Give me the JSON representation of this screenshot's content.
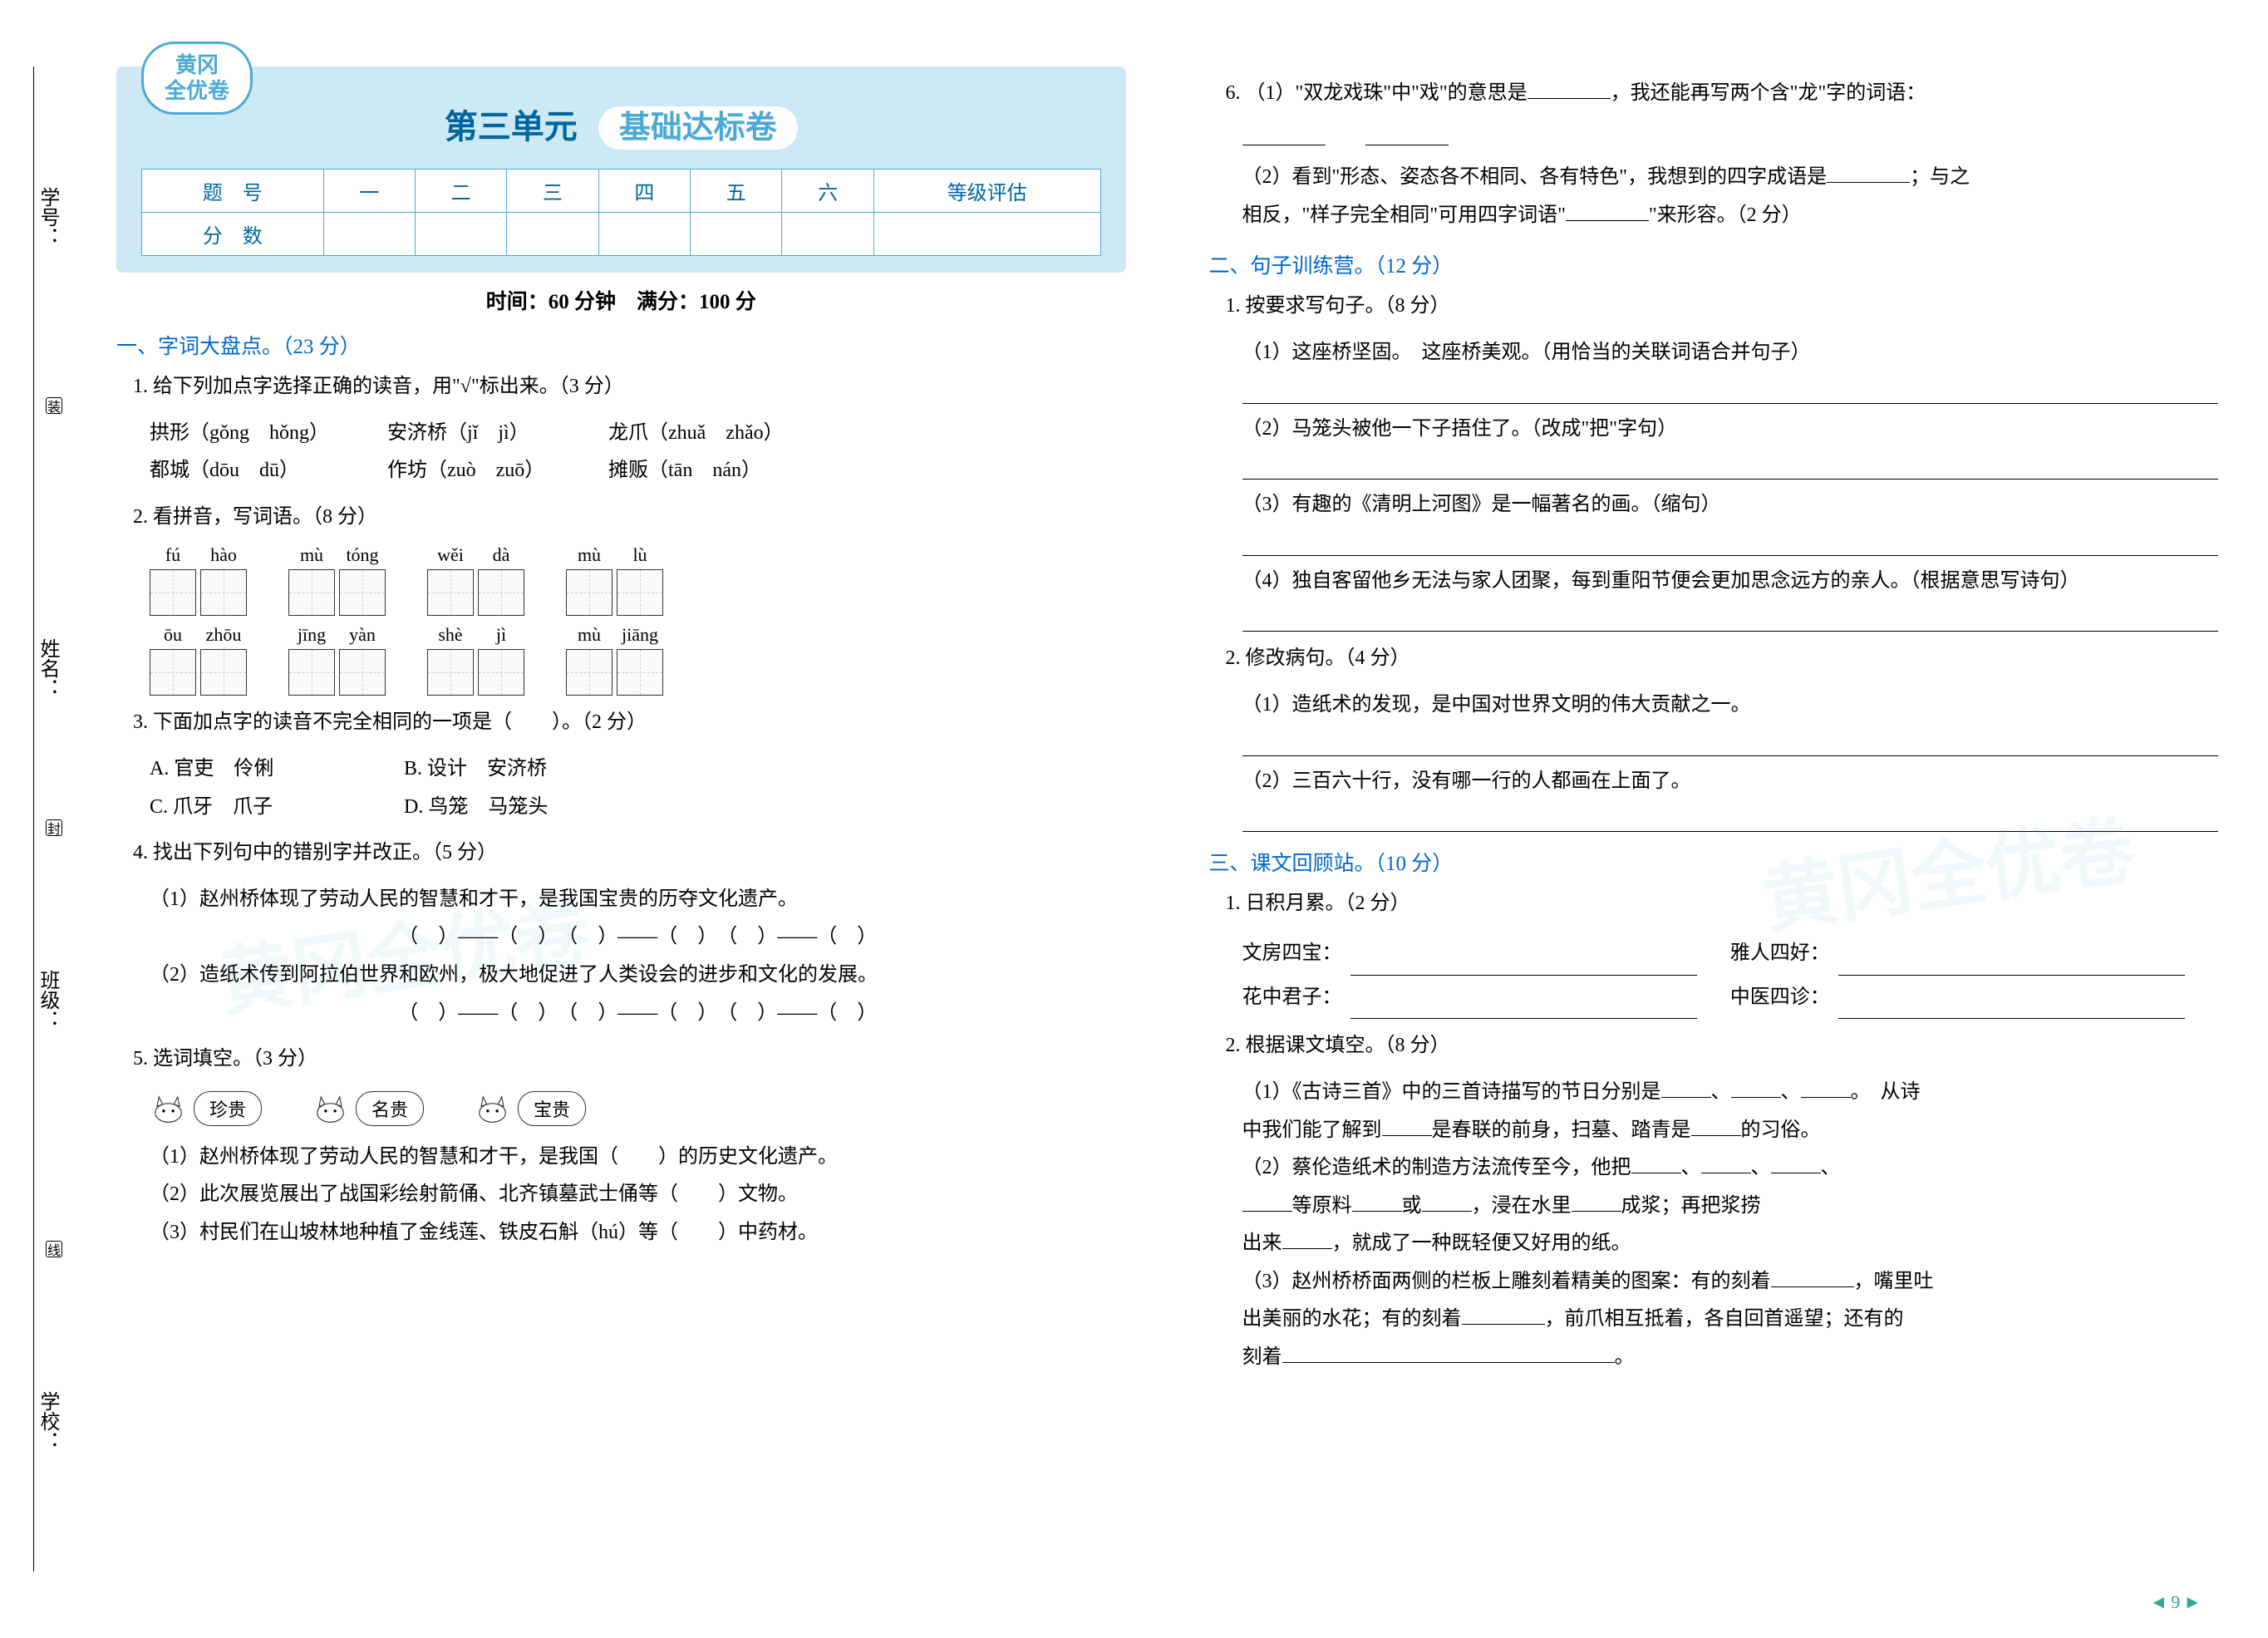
{
  "margin_labels": {
    "school": "学校：",
    "class": "班级：",
    "name": "姓名：",
    "number": "学号："
  },
  "cut_marks": [
    "装",
    "封",
    "线"
  ],
  "badge": {
    "line1": "黄冈",
    "line2": "全优卷"
  },
  "header": {
    "unit": "第三单元",
    "subtitle": "基础达标卷"
  },
  "score_headers": [
    "题　号",
    "一",
    "二",
    "三",
    "四",
    "五",
    "六",
    "等级评估"
  ],
  "score_row_label": "分　数",
  "time_info": "时间：60 分钟　满分：100 分",
  "sec1": {
    "title": "一、字词大盘点。（23 分）",
    "q1": {
      "stem": "1. 给下列加点字选择正确的读音，用\"√\"标出来。（3 分）",
      "rows": [
        [
          "拱形（gǒng　hǒng）",
          "安济桥（jǐ　jì）",
          "龙爪（zhuǎ　zhǎo）"
        ],
        [
          "都城（dōu　dū）",
          "作坊（zuò　zuō）",
          "摊贩（tān　nán）"
        ]
      ]
    },
    "q2": {
      "stem": "2. 看拼音，写词语。（8 分）",
      "row1": [
        [
          "fú",
          "hào"
        ],
        [
          "mù",
          "tóng"
        ],
        [
          "wěi",
          "dà"
        ],
        [
          "mù",
          "lù"
        ]
      ],
      "row2": [
        [
          "ōu",
          "zhōu"
        ],
        [
          "jīng",
          "yàn"
        ],
        [
          "shè",
          "jì"
        ],
        [
          "mù",
          "jiāng"
        ]
      ]
    },
    "q3": {
      "stem": "3. 下面加点字的读音不完全相同的一项是（　　）。（2 分）",
      "opts": [
        "A. 官吏　伶俐",
        "B. 设计　安济桥",
        "C. 爪牙　爪子",
        "D. 鸟笼　马笼头"
      ]
    },
    "q4": {
      "stem": "4. 找出下列句中的错别字并改正。（5 分）",
      "s1": "（1）赵州桥体现了劳动人民的智慧和才干，是我国宝贵的历夺文化遗产。",
      "s2": "（2）造纸术传到阿拉伯世界和欧州，极大地促进了人类设会的进步和文化的发展。",
      "corr": "（　）——（　）　（　）——（　）　（　）——（　）"
    },
    "q5": {
      "stem": "5. 选词填空。（3 分）",
      "words": [
        "珍贵",
        "名贵",
        "宝贵"
      ],
      "s1": "（1）赵州桥体现了劳动人民的智慧和才干，是我国（　　）的历史文化遗产。",
      "s2": "（2）此次展览展出了战国彩绘射箭俑、北齐镇墓武士俑等（　　）文物。",
      "s3": "（3）村民们在山坡林地种植了金线莲、铁皮石斛（hú）等（　　）中药材。"
    },
    "q6": {
      "s1a": "6. （1）\"双龙戏珠\"中\"戏\"的意思是",
      "s1b": "，我还能再写两个含\"龙\"字的词语：",
      "s2a": "（2）看到\"形态、姿态各不相同、各有特色\"，我想到的四字成语是",
      "s2b": "；与之",
      "s2c": "相反，\"样子完全相同\"可用四字词语\"",
      "s2d": "\"来形容。（2 分）"
    }
  },
  "sec2": {
    "title": "二、句子训练营。（12 分）",
    "q1": {
      "stem": "1. 按要求写句子。（8 分）",
      "s1": "（1）这座桥坚固。　这座桥美观。（用恰当的关联词语合并句子）",
      "s2": "（2）马笼头被他一下子捂住了。（改成\"把\"字句）",
      "s3": "（3）有趣的《清明上河图》是一幅著名的画。（缩句）",
      "s4": "（4）独自客留他乡无法与家人团聚，每到重阳节便会更加思念远方的亲人。（根据意思写诗句）"
    },
    "q2": {
      "stem": "2. 修改病句。（4 分）",
      "s1": "（1）造纸术的发现，是中国对世界文明的伟大贡献之一。",
      "s2": "（2）三百六十行，没有哪一行的人都画在上面了。"
    }
  },
  "sec3": {
    "title": "三、课文回顾站。（10 分）",
    "q1": {
      "stem": "1. 日积月累。（2 分）",
      "labels": [
        "文房四宝：",
        "雅人四好：",
        "花中君子：",
        "中医四诊："
      ]
    },
    "q2": {
      "stem": "2. 根据课文填空。（8 分）",
      "s1a": "（1）《古诗三首》中的三首诗描写的节日分别是",
      "s1b": "。　从诗",
      "s1c": "中我们能了解到",
      "s1d": "是春联的前身，扫墓、踏青是",
      "s1e": "的习俗。",
      "s2a": "（2）蔡伦造纸术的制造方法流传至今，他把",
      "s2b": "等原料",
      "s2c": "或",
      "s2d": "，浸在水里",
      "s2e": "成浆；再把浆捞",
      "s2f": "出来",
      "s2g": "，就成了一种既轻便又好用的纸。",
      "s3a": "（3）赵州桥桥面两侧的栏板上雕刻着精美的图案：有的刻着",
      "s3b": "，嘴里吐",
      "s3c": "出美丽的水花；有的刻着",
      "s3d": "，前爪相互抵着，各自回首遥望；还有的",
      "s3e": "刻着"
    }
  },
  "page_num": "9",
  "watermark": "黄冈全优卷"
}
